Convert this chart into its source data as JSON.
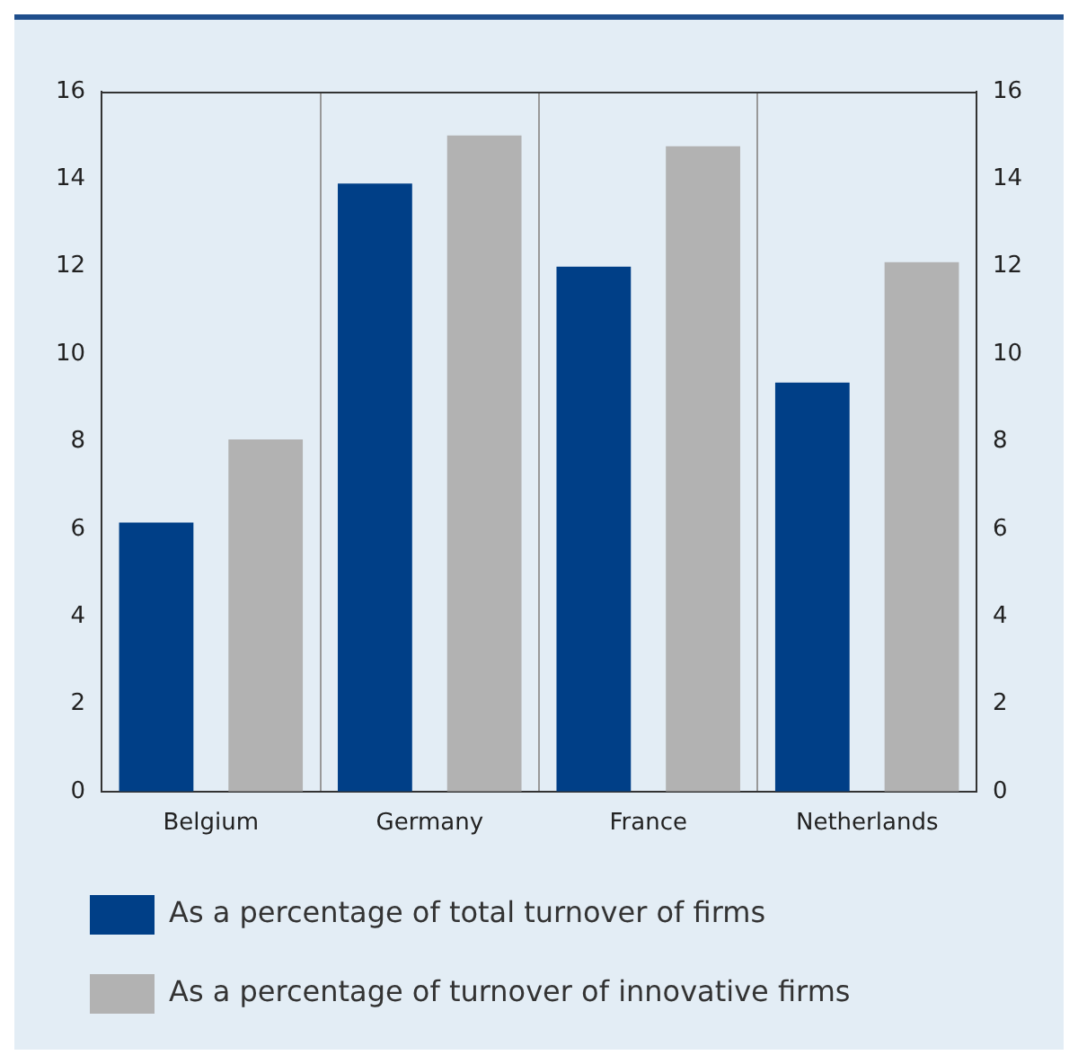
{
  "chart_data": {
    "type": "bar",
    "categories": [
      "Belgium",
      "Germany",
      "France",
      "Netherlands"
    ],
    "series": [
      {
        "name": "As a percentage of total turnover of firms",
        "color": "#003f87",
        "values": [
          6.15,
          13.9,
          12.0,
          9.35
        ]
      },
      {
        "name": "As a percentage of turnover of innovative firms",
        "color": "#b2b2b2",
        "values": [
          8.05,
          15.0,
          14.75,
          12.1
        ]
      }
    ],
    "ylim": [
      0,
      16
    ],
    "yticks": [
      0,
      2,
      4,
      6,
      8,
      10,
      12,
      14,
      16
    ],
    "y2lim": [
      0,
      16
    ],
    "y2ticks": [
      0,
      2,
      4,
      6,
      8,
      10,
      12,
      14,
      16
    ],
    "grid": "x",
    "legend": "bottom"
  }
}
